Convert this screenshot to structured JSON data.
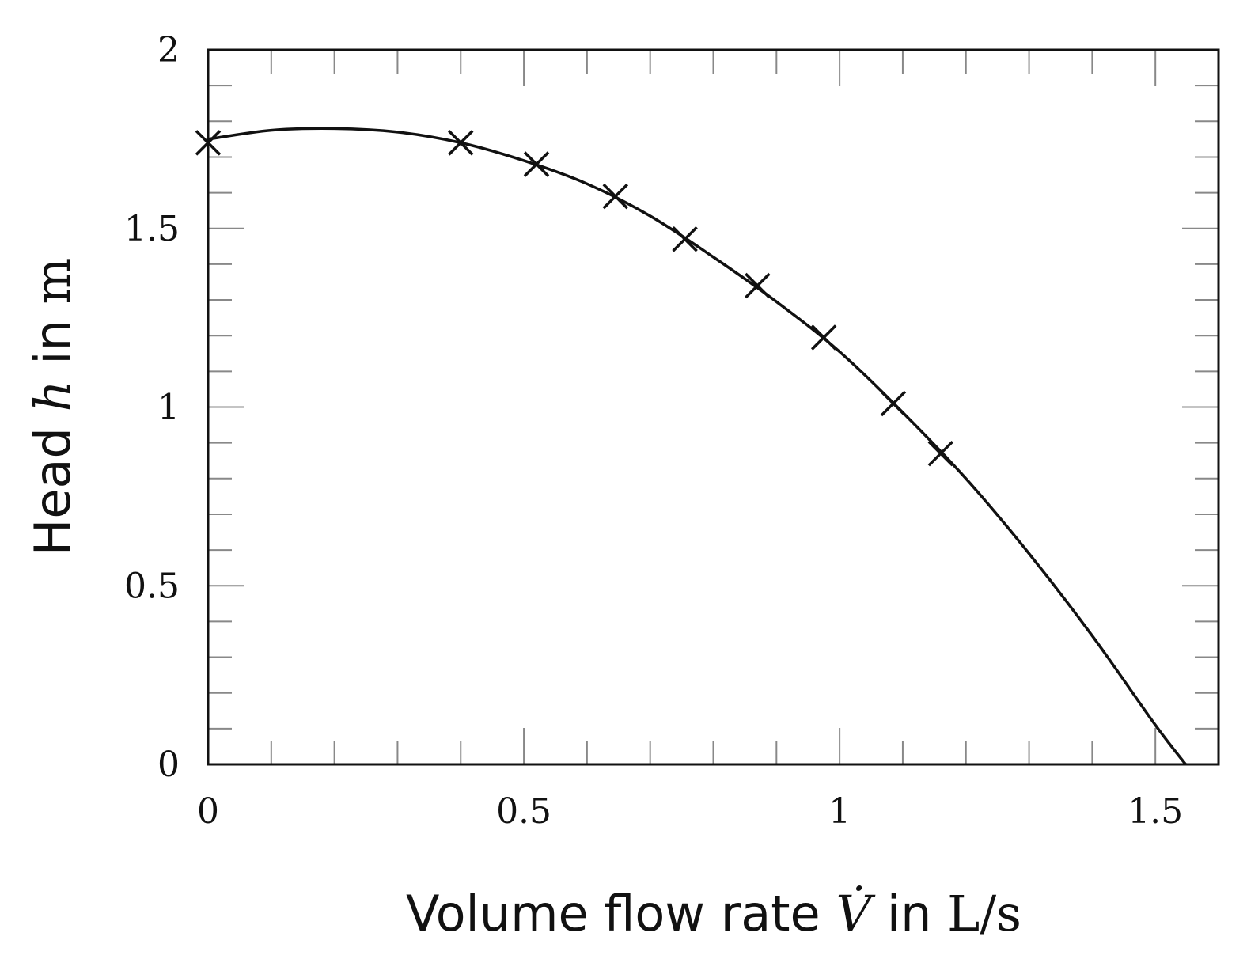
{
  "chart_data": {
    "type": "line",
    "xlabel": {
      "prefix": "Volume flow rate ",
      "symbol": "V̇",
      "middle": " in ",
      "unit": "L/s"
    },
    "ylabel": {
      "prefix": "Head ",
      "symbol": "h",
      "middle": " in ",
      "unit": "m"
    },
    "xlim": [
      0,
      1.6
    ],
    "ylim": [
      0,
      2
    ],
    "x_ticks": [
      0,
      0.5,
      1,
      1.5
    ],
    "x_tick_labels": [
      "0",
      "0.5",
      "1",
      "1.5"
    ],
    "y_ticks": [
      0,
      0.5,
      1,
      1.5,
      2
    ],
    "y_tick_labels": [
      "0",
      "0.5",
      "1",
      "1.5",
      "2"
    ],
    "x_minor_step": 0.1,
    "y_minor_step": 0.1,
    "grid": false,
    "series": [
      {
        "kind": "markers",
        "marker": "cross",
        "color": "#111111",
        "x": [
          0,
          0.4,
          0.52,
          0.645,
          0.755,
          0.87,
          0.975,
          1.085,
          1.16
        ],
        "y": [
          1.74,
          1.74,
          1.68,
          1.59,
          1.47,
          1.34,
          1.195,
          1.01,
          0.87
        ]
      },
      {
        "kind": "curve",
        "color": "#111111",
        "x": [
          0,
          0.1,
          0.2,
          0.3,
          0.4,
          0.5,
          0.6,
          0.7,
          0.8,
          0.9,
          1.0,
          1.1,
          1.2,
          1.3,
          1.4,
          1.5,
          1.548
        ],
        "y": [
          1.75,
          1.775,
          1.78,
          1.77,
          1.74,
          1.69,
          1.625,
          1.535,
          1.42,
          1.295,
          1.155,
          0.985,
          0.8,
          0.59,
          0.36,
          0.11,
          0.0
        ]
      }
    ]
  }
}
